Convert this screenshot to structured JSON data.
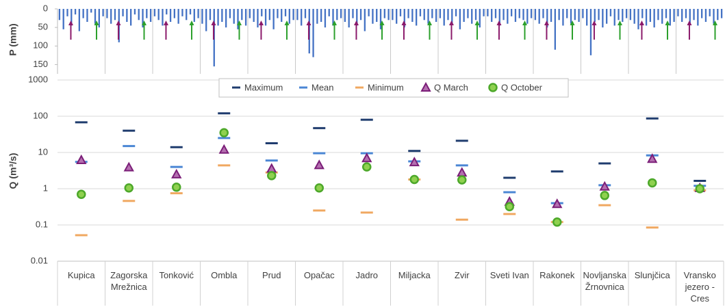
{
  "chart_data": [
    {
      "type": "bar",
      "ylabel": "P (mm)",
      "color": "#4472c4",
      "inverted": true,
      "ylim": [
        0,
        175
      ],
      "yticks": [
        0,
        50,
        100,
        150
      ],
      "values": [
        30,
        55,
        20,
        45,
        15,
        60,
        25,
        35,
        10,
        40,
        50,
        20,
        25,
        40,
        30,
        90,
        20,
        35,
        45,
        15,
        30,
        50,
        25,
        35,
        20,
        30,
        45,
        15,
        35,
        25,
        40,
        20,
        30,
        15,
        35,
        25,
        40,
        60,
        30,
        155,
        45,
        35,
        50,
        25,
        40,
        55,
        30,
        45,
        25,
        35,
        50,
        20,
        45,
        30,
        55,
        25,
        35,
        20,
        40,
        30,
        30,
        45,
        25,
        120,
        130,
        40,
        35,
        50,
        20,
        45,
        30,
        25,
        35,
        50,
        25,
        45,
        30,
        60,
        20,
        40,
        35,
        55,
        25,
        30,
        30,
        40,
        20,
        50,
        25,
        35,
        45,
        20,
        30,
        40,
        25,
        35,
        25,
        45,
        30,
        40,
        20,
        55,
        35,
        25,
        40,
        30,
        50,
        20,
        20,
        35,
        25,
        45,
        30,
        40,
        20,
        35,
        25,
        30,
        40,
        25,
        30,
        40,
        25,
        50,
        35,
        110,
        30,
        45,
        25,
        40,
        30,
        35,
        25,
        45,
        125,
        35,
        30,
        50,
        40,
        20,
        45,
        30,
        35,
        25,
        30,
        40,
        55,
        25,
        45,
        35,
        50,
        30,
        40,
        25,
        45,
        35,
        20,
        35,
        25,
        40,
        30,
        45,
        25,
        35,
        20,
        40,
        30,
        25
      ]
    },
    {
      "type": "dot",
      "ylabel": "Q (m³/s)",
      "log_scale": true,
      "grid": true,
      "ylim": [
        0.01,
        1000
      ],
      "yticks": [
        0.01,
        0.1,
        1,
        10,
        100,
        1000
      ],
      "categories": [
        "Kupica",
        "Zagorska Mrežnica",
        "Tonković",
        "Ombla",
        "Prud",
        "Opačac",
        "Jadro",
        "Miljacka",
        "Zvir",
        "Sveti Ivan",
        "Rakonek",
        "Novljanska Žrnovnica",
        "Slunjčica",
        "Vransko jezero - Cres"
      ],
      "series": [
        {
          "name": "Maximum",
          "marker": "dash",
          "color": "#1f3c6e",
          "values": [
            68,
            40,
            14,
            120,
            18,
            47,
            80,
            11,
            21,
            2,
            3,
            5,
            87,
            1.65
          ]
        },
        {
          "name": "Mean",
          "marker": "dash",
          "color": "#4a86d4",
          "values": [
            5.5,
            15,
            4,
            25,
            6,
            9.5,
            9.5,
            5.7,
            4.4,
            0.8,
            0.4,
            1.25,
            8.3,
            1.2
          ]
        },
        {
          "name": "Minimum",
          "marker": "dash",
          "color": "#f0a860",
          "values": [
            0.052,
            0.46,
            0.75,
            4.4,
            2.8,
            0.25,
            0.22,
            1.8,
            0.14,
            0.2,
            0.12,
            0.35,
            0.085,
            0.9
          ]
        },
        {
          "name": "Q March",
          "marker": "triangle",
          "color": "#7b1e78",
          "values": [
            6.2,
            3.9,
            2.5,
            12,
            3.6,
            4.5,
            7,
            5.4,
            2.8,
            0.44,
            0.38,
            1.15,
            6.7,
            1.05
          ]
        },
        {
          "name": "Q October",
          "marker": "circle",
          "color": "#4da82a",
          "values": [
            0.7,
            1.05,
            1.1,
            35,
            2.3,
            1.05,
            4,
            1.8,
            1.75,
            0.32,
            0.12,
            0.65,
            1.45,
            1.0
          ]
        }
      ]
    }
  ]
}
